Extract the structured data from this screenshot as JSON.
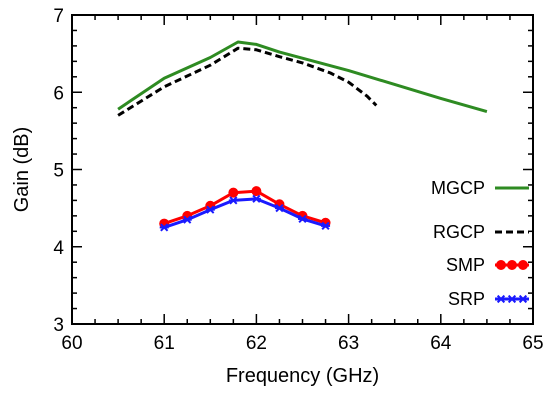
{
  "chart_data": {
    "type": "line",
    "title": "",
    "xlabel": "Frequency (GHz)",
    "ylabel": "Gain (dB)",
    "xlim": [
      60,
      65
    ],
    "ylim": [
      3,
      7
    ],
    "xticks": [
      60,
      61,
      62,
      63,
      64,
      65
    ],
    "yticks": [
      3,
      4,
      5,
      6,
      7
    ],
    "grid": false,
    "legend_position": "bottom-right",
    "series": [
      {
        "name": "MGCP",
        "color": "#2e8b22",
        "line_style": "solid",
        "marker": "none",
        "x": [
          60.5,
          61.0,
          61.5,
          61.8,
          62.0,
          62.25,
          63.0,
          64.0,
          64.5
        ],
        "y": [
          5.78,
          6.18,
          6.45,
          6.65,
          6.62,
          6.52,
          6.28,
          5.92,
          5.75
        ]
      },
      {
        "name": "RGCP",
        "color": "#000000",
        "line_style": "dashed",
        "marker": "none",
        "x": [
          60.5,
          61.0,
          61.5,
          61.8,
          62.0,
          62.25,
          62.5,
          62.8,
          63.0,
          63.2,
          63.3
        ],
        "y": [
          5.7,
          6.07,
          6.35,
          6.57,
          6.55,
          6.46,
          6.38,
          6.25,
          6.13,
          5.95,
          5.83
        ]
      },
      {
        "name": "SMP",
        "color": "#ff0000",
        "line_style": "solid",
        "marker": "circle",
        "x": [
          61.0,
          61.25,
          61.5,
          61.75,
          62.0,
          62.25,
          62.5,
          62.75
        ],
        "y": [
          4.3,
          4.4,
          4.53,
          4.7,
          4.72,
          4.55,
          4.4,
          4.31
        ]
      },
      {
        "name": "SRP",
        "color": "#1a1aff",
        "line_style": "solid",
        "marker": "star",
        "x": [
          61.0,
          61.25,
          61.5,
          61.75,
          62.0,
          62.25,
          62.5,
          62.75
        ],
        "y": [
          4.25,
          4.35,
          4.48,
          4.6,
          4.62,
          4.5,
          4.36,
          4.27
        ]
      }
    ]
  }
}
